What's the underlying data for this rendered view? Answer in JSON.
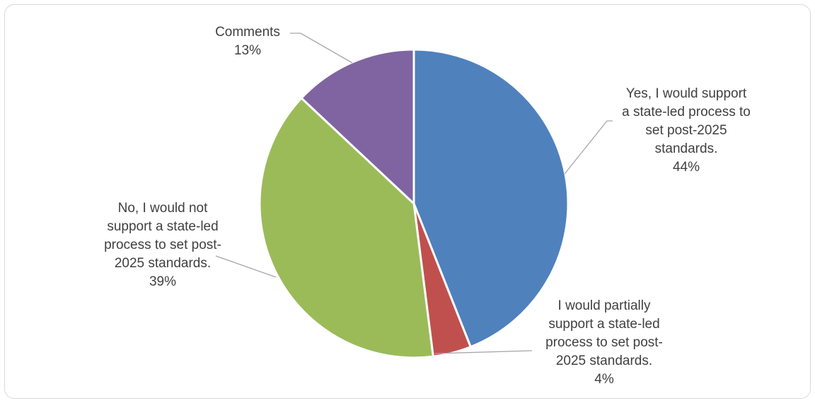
{
  "chart_data": {
    "type": "pie",
    "slices": [
      {
        "label_lines": [
          "Yes, I would support",
          "a state-led process to",
          "set post-2025",
          "standards."
        ],
        "percent_label": "44%",
        "value": 44,
        "color": "#4f81bd"
      },
      {
        "label_lines": [
          "I would partially",
          "support a state-led",
          "process to set post-",
          "2025 standards."
        ],
        "percent_label": "4%",
        "value": 4,
        "color": "#c0504d"
      },
      {
        "label_lines": [
          "No, I would not",
          "support a state-led",
          "process to set post-",
          "2025 standards."
        ],
        "percent_label": "39%",
        "value": 39,
        "color": "#9bbb59"
      },
      {
        "label_lines": [
          "Comments"
        ],
        "percent_label": "13%",
        "value": 13,
        "color": "#8064a2"
      }
    ],
    "start_angle": "12 o'clock",
    "direction": "clockwise",
    "legend": "none",
    "data_labels": "outside with leader lines"
  }
}
